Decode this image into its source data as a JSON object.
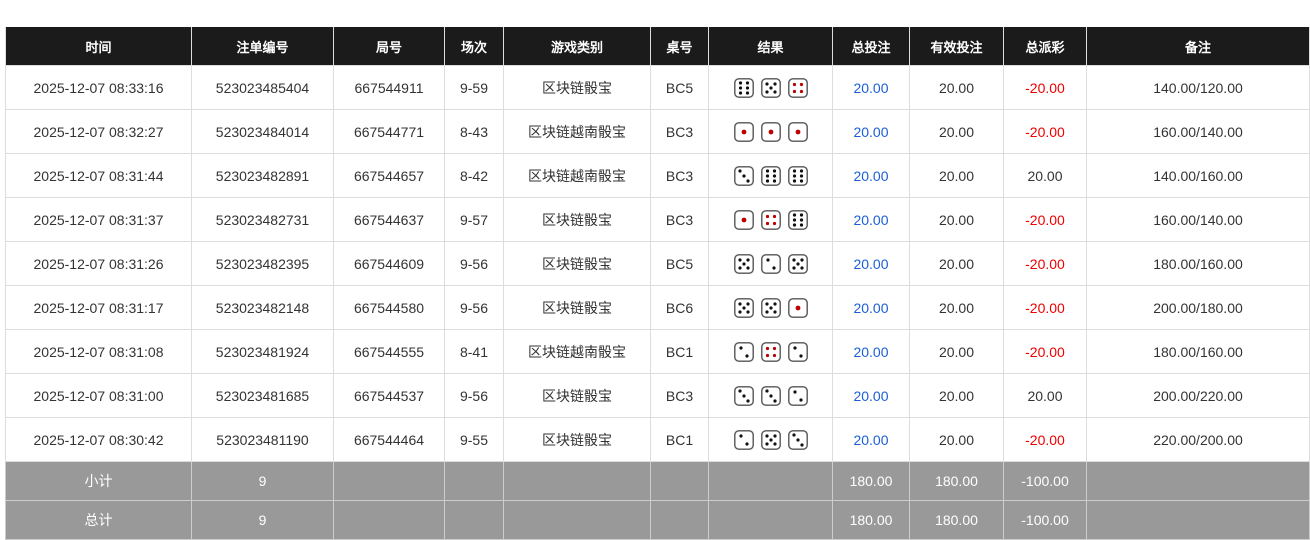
{
  "headers": [
    "时间",
    "注单编号",
    "局号",
    "场次",
    "游戏类别",
    "桌号",
    "结果",
    "总投注",
    "有效投注",
    "总派彩",
    "备注"
  ],
  "rows": [
    {
      "time": "2025-12-07 08:33:16",
      "bet_id": "523023485404",
      "round": "667544911",
      "session": "9-59",
      "game": "区块链骰宝",
      "table": "BC5",
      "dice": [
        6,
        5,
        4
      ],
      "total_bet": "20.00",
      "valid_bet": "20.00",
      "payout": "-20.00",
      "note": "140.00/120.00"
    },
    {
      "time": "2025-12-07 08:32:27",
      "bet_id": "523023484014",
      "round": "667544771",
      "session": "8-43",
      "game": "区块链越南骰宝",
      "table": "BC3",
      "dice": [
        1,
        1,
        1
      ],
      "total_bet": "20.00",
      "valid_bet": "20.00",
      "payout": "-20.00",
      "note": "160.00/140.00"
    },
    {
      "time": "2025-12-07 08:31:44",
      "bet_id": "523023482891",
      "round": "667544657",
      "session": "8-42",
      "game": "区块链越南骰宝",
      "table": "BC3",
      "dice": [
        3,
        6,
        6
      ],
      "total_bet": "20.00",
      "valid_bet": "20.00",
      "payout": "20.00",
      "note": "140.00/160.00"
    },
    {
      "time": "2025-12-07 08:31:37",
      "bet_id": "523023482731",
      "round": "667544637",
      "session": "9-57",
      "game": "区块链骰宝",
      "table": "BC3",
      "dice": [
        1,
        4,
        6
      ],
      "total_bet": "20.00",
      "valid_bet": "20.00",
      "payout": "-20.00",
      "note": "160.00/140.00"
    },
    {
      "time": "2025-12-07 08:31:26",
      "bet_id": "523023482395",
      "round": "667544609",
      "session": "9-56",
      "game": "区块链骰宝",
      "table": "BC5",
      "dice": [
        5,
        2,
        5
      ],
      "total_bet": "20.00",
      "valid_bet": "20.00",
      "payout": "-20.00",
      "note": "180.00/160.00"
    },
    {
      "time": "2025-12-07 08:31:17",
      "bet_id": "523023482148",
      "round": "667544580",
      "session": "9-56",
      "game": "区块链骰宝",
      "table": "BC6",
      "dice": [
        5,
        5,
        1
      ],
      "total_bet": "20.00",
      "valid_bet": "20.00",
      "payout": "-20.00",
      "note": "200.00/180.00"
    },
    {
      "time": "2025-12-07 08:31:08",
      "bet_id": "523023481924",
      "round": "667544555",
      "session": "8-41",
      "game": "区块链越南骰宝",
      "table": "BC1",
      "dice": [
        2,
        4,
        2
      ],
      "total_bet": "20.00",
      "valid_bet": "20.00",
      "payout": "-20.00",
      "note": "180.00/160.00"
    },
    {
      "time": "2025-12-07 08:31:00",
      "bet_id": "523023481685",
      "round": "667544537",
      "session": "9-56",
      "game": "区块链骰宝",
      "table": "BC3",
      "dice": [
        3,
        3,
        2
      ],
      "total_bet": "20.00",
      "valid_bet": "20.00",
      "payout": "20.00",
      "note": "200.00/220.00"
    },
    {
      "time": "2025-12-07 08:30:42",
      "bet_id": "523023481190",
      "round": "667544464",
      "session": "9-55",
      "game": "区块链骰宝",
      "table": "BC1",
      "dice": [
        2,
        5,
        3
      ],
      "total_bet": "20.00",
      "valid_bet": "20.00",
      "payout": "-20.00",
      "note": "220.00/200.00"
    }
  ],
  "subtotal": {
    "label": "小计",
    "count": "9",
    "total_bet": "180.00",
    "valid_bet": "180.00",
    "payout": "-100.00"
  },
  "grandtotal": {
    "label": "总计",
    "count": "9",
    "total_bet": "180.00",
    "valid_bet": "180.00",
    "payout": "-100.00"
  },
  "colors": {
    "header_bg": "#1b1b1b",
    "bet_blue": "#1a5fd6",
    "loss_red": "#e00000",
    "summary_bg": "#999999",
    "dice_red_pip": "#c00000"
  }
}
